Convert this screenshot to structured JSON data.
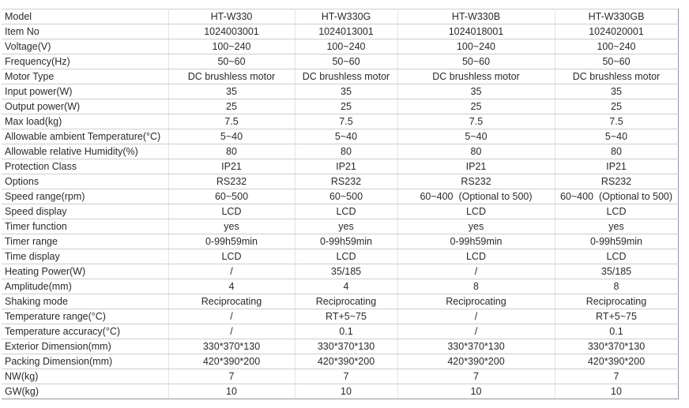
{
  "table": {
    "rows": [
      [
        "Model",
        "HT-W330",
        "HT-W330G",
        "HT-W330B",
        "HT-W330GB"
      ],
      [
        "Item No",
        "1024003001",
        "1024013001",
        "1024018001",
        "1024020001"
      ],
      [
        "Voltage(V)",
        "100~240",
        "100~240",
        "100~240",
        "100~240"
      ],
      [
        "Frequency(Hz)",
        "50~60",
        "50~60",
        "50~60",
        "50~60"
      ],
      [
        "Motor Type",
        "DC brushless motor",
        "DC brushless motor",
        "DC brushless motor",
        "DC brushless motor"
      ],
      [
        "Input power(W)",
        "35",
        "35",
        "35",
        "35"
      ],
      [
        "Output power(W)",
        "25",
        "25",
        "25",
        "25"
      ],
      [
        "Max load(kg)",
        "7.5",
        "7.5",
        "7.5",
        "7.5"
      ],
      [
        "Allowable ambient Temperature(°C)",
        "5~40",
        "5~40",
        "5~40",
        "5~40"
      ],
      [
        "Allowable relative Humidity(%)",
        "80",
        "80",
        "80",
        "80"
      ],
      [
        "Protection Class",
        "IP21",
        "IP21",
        "IP21",
        "IP21"
      ],
      [
        "Options",
        "RS232",
        "RS232",
        "RS232",
        "RS232"
      ],
      [
        "Speed range(rpm)",
        "60~500",
        "60~500",
        "60~400  (Optional to 500)",
        "60~400  (Optional to 500)"
      ],
      [
        "Speed display",
        "LCD",
        "LCD",
        "LCD",
        "LCD"
      ],
      [
        "Timer function",
        "yes",
        "yes",
        "yes",
        "yes"
      ],
      [
        "Timer range",
        "0-99h59min",
        "0-99h59min",
        "0-99h59min",
        "0-99h59min"
      ],
      [
        "Time display",
        "LCD",
        "LCD",
        "LCD",
        "LCD"
      ],
      [
        "Heating Power(W)",
        "/",
        "35/185",
        "/",
        "35/185"
      ],
      [
        "Amplitude(mm)",
        "4",
        "4",
        "8",
        "8"
      ],
      [
        "Shaking mode",
        "Reciprocating",
        "Reciprocating",
        "Reciprocating",
        "Reciprocating"
      ],
      [
        "Temperature range(°C)",
        "/",
        "RT+5~75",
        "/",
        "RT+5~75"
      ],
      [
        "Temperature accuracy(°C)",
        "/",
        "0.1",
        "/",
        "0.1"
      ],
      [
        "Exterior Dimension(mm)",
        "330*370*130",
        "330*370*130",
        "330*370*130",
        "330*370*130"
      ],
      [
        "Packing Dimension(mm)",
        "420*390*200",
        "420*390*200",
        "420*390*200",
        "420*390*200"
      ],
      [
        "NW(kg)",
        "7",
        "7",
        "7",
        "7"
      ],
      [
        "GW(kg)",
        "10",
        "10",
        "10",
        "10"
      ]
    ]
  }
}
